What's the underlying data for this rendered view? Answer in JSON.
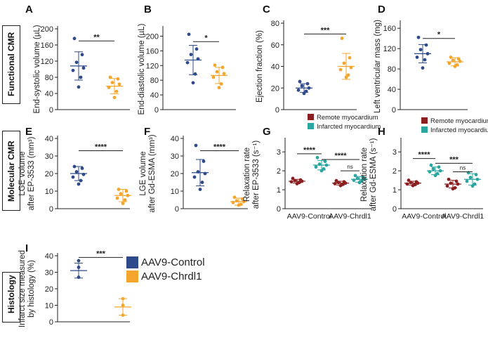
{
  "colors": {
    "control": "#2e4a8a",
    "chrdl1": "#f4a52c",
    "remote": "#8b1f1f",
    "infarcted": "#2aa5a0",
    "ink": "#222222"
  },
  "sections": {
    "functional": "Functional CMR",
    "molecular": "Molecular CMR",
    "histology": "Histology"
  },
  "legend": {
    "control": "AAV9-Control",
    "chrdl1": "AAV9-Chrdl1"
  },
  "chart_data": [
    {
      "id": "A",
      "letter": "A",
      "type": "scatter",
      "ylabel": [
        "End-systolic volume (µL)"
      ],
      "ylim": [
        0,
        200
      ],
      "yticks": [
        0,
        40,
        80,
        120,
        160,
        200
      ],
      "groups": [
        {
          "name": "AAV9-Control",
          "color": "control",
          "mean": 108,
          "sd": 35,
          "points": [
            176,
            136,
            117,
            103,
            97,
            80,
            56
          ]
        },
        {
          "name": "AAV9-Chrdl1",
          "color": "chrdl1",
          "mean": 58,
          "sd": 19,
          "points": [
            80,
            76,
            67,
            63,
            55,
            45,
            30
          ]
        }
      ],
      "sig": [
        {
          "from": 0,
          "to": 1,
          "y": 170,
          "label": "**"
        }
      ]
    },
    {
      "id": "B",
      "letter": "B",
      "type": "scatter",
      "ylabel": [
        "End-diastolic volume (µL)"
      ],
      "ylim": [
        0,
        220
      ],
      "yticks": [
        0,
        40,
        80,
        120,
        160,
        200
      ],
      "groups": [
        {
          "name": "AAV9-Control",
          "color": "control",
          "mean": 135,
          "sd": 40,
          "points": [
            205,
            165,
            150,
            138,
            128,
            97,
            73
          ]
        },
        {
          "name": "AAV9-Chrdl1",
          "color": "chrdl1",
          "mean": 93,
          "sd": 22,
          "points": [
            121,
            115,
            103,
            98,
            88,
            70,
            60
          ]
        }
      ],
      "sig": [
        {
          "from": 0,
          "to": 1,
          "y": 185,
          "label": "*"
        }
      ]
    },
    {
      "id": "C",
      "letter": "C",
      "type": "scatter",
      "ylabel": [
        "Ejection fraction (%)"
      ],
      "ylim": [
        0,
        80
      ],
      "yticks": [
        0,
        20,
        40,
        60,
        80
      ],
      "groups": [
        {
          "name": "AAV9-Control",
          "color": "control",
          "mean": 20,
          "sd": 4,
          "points": [
            26,
            24,
            22,
            20,
            18,
            17,
            15
          ]
        },
        {
          "name": "AAV9-Chrdl1",
          "color": "chrdl1",
          "mean": 40,
          "sd": 12,
          "points": [
            66,
            48,
            43,
            39,
            37,
            32,
            30
          ]
        }
      ],
      "sig": [
        {
          "from": 0,
          "to": 1,
          "y": 70,
          "label": "***"
        }
      ]
    },
    {
      "id": "D",
      "letter": "D",
      "type": "scatter",
      "ylabel": [
        "Left ventricular mass (mg)"
      ],
      "ylim": [
        0,
        170
      ],
      "yticks": [
        0,
        40,
        80,
        120,
        160
      ],
      "groups": [
        {
          "name": "AAV9-Control",
          "color": "control",
          "mean": 110,
          "sd": 18,
          "points": [
            142,
            127,
            118,
            110,
            103,
            98,
            82
          ]
        },
        {
          "name": "AAV9-Chrdl1",
          "color": "chrdl1",
          "mean": 94,
          "sd": 8,
          "points": [
            103,
            100,
            97,
            95,
            91,
            88,
            85
          ]
        }
      ],
      "sig": [
        {
          "from": 0,
          "to": 1,
          "y": 140,
          "label": "*"
        }
      ]
    },
    {
      "id": "E",
      "letter": "E",
      "type": "scatter",
      "ylabel": [
        "LGE volume",
        "after EP-3533 (mm³)"
      ],
      "ylim": [
        0,
        40
      ],
      "yticks": [
        0,
        10,
        20,
        30,
        40
      ],
      "groups": [
        {
          "name": "AAV9-Control",
          "color": "control",
          "mean": 20,
          "sd": 4,
          "points": [
            24,
            23,
            21,
            19.5,
            18,
            16,
            14
          ]
        },
        {
          "name": "AAV9-Chrdl1",
          "color": "chrdl1",
          "mean": 7.5,
          "sd": 3.5,
          "points": [
            11,
            10,
            8.5,
            7.5,
            6,
            5,
            3
          ]
        }
      ],
      "sig": [
        {
          "from": 0,
          "to": 1,
          "y": 33,
          "label": "****"
        }
      ]
    },
    {
      "id": "F",
      "letter": "F",
      "type": "scatter",
      "ylabel": [
        "LGE volume",
        "after Gd-ESMA (mm³)"
      ],
      "ylim": [
        0,
        40
      ],
      "yticks": [
        0,
        10,
        20,
        30,
        40
      ],
      "groups": [
        {
          "name": "AAV9-Control",
          "color": "control",
          "mean": 20.5,
          "sd": 7.5,
          "points": [
            36,
            27,
            21,
            20,
            18,
            15,
            11
          ]
        },
        {
          "name": "AAV9-Chrdl1",
          "color": "chrdl1",
          "mean": 4,
          "sd": 2,
          "points": [
            6.5,
            5.5,
            4.5,
            4,
            3.5,
            2.5,
            2
          ]
        }
      ],
      "sig": [
        {
          "from": 0,
          "to": 1,
          "y": 33,
          "label": "****"
        }
      ]
    },
    {
      "id": "G",
      "letter": "G",
      "type": "scatter",
      "ylabel": [
        "Relaxation rate",
        "after EP-3533 (s⁻¹)"
      ],
      "ylim": [
        0,
        3.6
      ],
      "yticks": [
        0,
        1,
        2,
        3
      ],
      "categories": [
        "AAV9-Control",
        "AAV9-Chrdl1"
      ],
      "legend": [
        {
          "label": "Remote myocardium",
          "color": "remote"
        },
        {
          "label": "Infarcted myocardium",
          "color": "infarcted"
        }
      ],
      "groups": [
        {
          "name": "Remote myocardium",
          "color": "remote",
          "mean": 1.45,
          "sd": 0.1,
          "points": [
            1.6,
            1.52,
            1.48,
            1.45,
            1.42,
            1.38,
            1.32
          ]
        },
        {
          "name": "Infarcted myocardium",
          "color": "infarcted",
          "mean": 2.3,
          "sd": 0.25,
          "points": [
            2.7,
            2.5,
            2.35,
            2.3,
            2.2,
            2.1,
            2.0
          ]
        },
        {
          "name": "Remote myocardium",
          "color": "remote",
          "mean": 1.35,
          "sd": 0.1,
          "points": [
            1.48,
            1.42,
            1.38,
            1.35,
            1.32,
            1.28,
            1.22
          ]
        },
        {
          "name": "Infarcted myocardium",
          "color": "infarcted",
          "mean": 1.55,
          "sd": 0.15,
          "points": [
            1.75,
            1.65,
            1.6,
            1.55,
            1.5,
            1.45,
            1.38
          ]
        }
      ],
      "sig": [
        {
          "from": 0,
          "to": 1,
          "y": 2.9,
          "label": "****"
        },
        {
          "from": 1,
          "to": 3,
          "y": 2.6,
          "label": "****"
        },
        {
          "from": 2,
          "to": 3,
          "y": 2.0,
          "label": "ns"
        }
      ]
    },
    {
      "id": "H",
      "letter": "H",
      "type": "scatter",
      "ylabel": [
        "Relaxation rate",
        "after Gd-ESMA (s⁻¹)"
      ],
      "ylim": [
        0,
        3.6
      ],
      "yticks": [
        0,
        1,
        2,
        3
      ],
      "categories": [
        "AAV9-Control",
        "AAV9-Chrdl1"
      ],
      "legend": [
        {
          "label": "Remote myocardium",
          "color": "remote"
        },
        {
          "label": "Infarcted myocardium",
          "color": "infarcted"
        }
      ],
      "groups": [
        {
          "name": "Remote myocardium",
          "color": "remote",
          "mean": 1.35,
          "sd": 0.1,
          "points": [
            1.5,
            1.42,
            1.38,
            1.35,
            1.3,
            1.27,
            1.22
          ]
        },
        {
          "name": "Infarcted myocardium",
          "color": "infarcted",
          "mean": 2.0,
          "sd": 0.2,
          "points": [
            2.3,
            2.2,
            2.1,
            2.0,
            1.95,
            1.85,
            1.75
          ]
        },
        {
          "name": "Remote myocardium",
          "color": "remote",
          "mean": 1.3,
          "sd": 0.2,
          "points": [
            1.55,
            1.45,
            1.35,
            1.3,
            1.2,
            1.1,
            1.05
          ]
        },
        {
          "name": "Infarcted myocardium",
          "color": "infarcted",
          "mean": 1.55,
          "sd": 0.3,
          "points": [
            1.9,
            1.8,
            1.65,
            1.55,
            1.45,
            1.3,
            1.2
          ]
        }
      ],
      "sig": [
        {
          "from": 0,
          "to": 1,
          "y": 2.65,
          "label": "****"
        },
        {
          "from": 1,
          "to": 3,
          "y": 2.4,
          "label": "***"
        },
        {
          "from": 2,
          "to": 3,
          "y": 1.95,
          "label": "ns"
        }
      ]
    },
    {
      "id": "I",
      "letter": "I",
      "type": "scatter",
      "ylabel": [
        "Infarct size measured",
        "by histology (%)"
      ],
      "ylim": [
        0,
        40
      ],
      "yticks": [
        0,
        10,
        20,
        30,
        40
      ],
      "groups": [
        {
          "name": "AAV9-Control",
          "color": "control",
          "mean": 31,
          "sd": 4.5,
          "points": [
            37,
            33,
            27
          ]
        },
        {
          "name": "AAV9-Chrdl1",
          "color": "chrdl1",
          "mean": 9,
          "sd": 5,
          "points": [
            14,
            10,
            4
          ]
        }
      ],
      "sig": [
        {
          "from": 0,
          "to": 1,
          "y": 39,
          "label": "***"
        }
      ]
    }
  ]
}
